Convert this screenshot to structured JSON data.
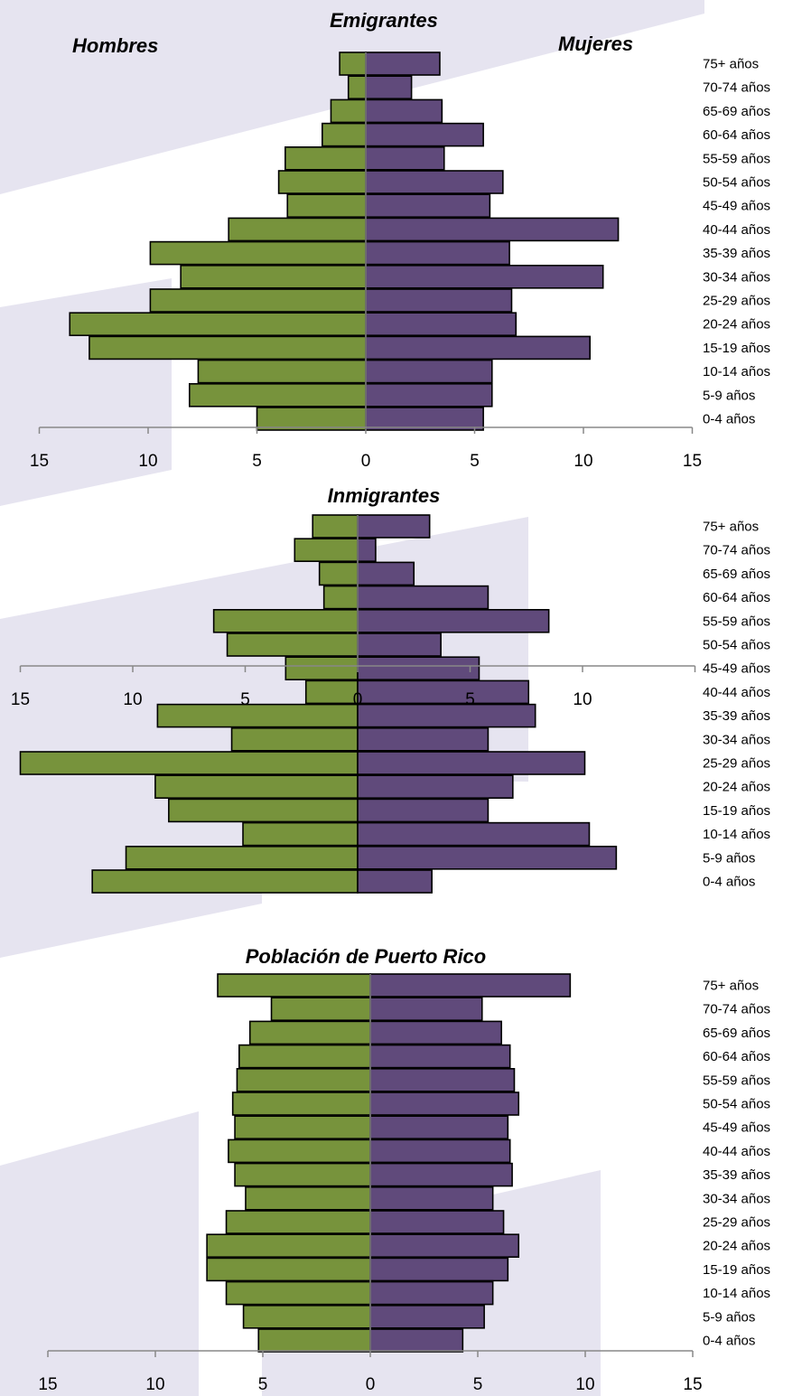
{
  "colors": {
    "male": "#77933c",
    "female": "#604a7b",
    "background_band": "#e6e4f0",
    "axis": "#888888"
  },
  "legend": {
    "male": "Hombres",
    "female": "Mujeres"
  },
  "chart_data": [
    {
      "type": "bar",
      "orientation": "horizontal-pyramid",
      "title": "Emigrantes",
      "categories": [
        "75+ años",
        "70-74 años",
        "65-69 años",
        "60-64 años",
        "55-59 años",
        "50-54 años",
        "45-49 años",
        "40-44 años",
        "35-39 años",
        "30-34 años",
        "25-29 años",
        "20-24 años",
        "15-19 años",
        "10-14 años",
        "5-9 años",
        "0-4 años"
      ],
      "series": [
        {
          "name": "Hombres",
          "values": [
            1.2,
            0.8,
            1.6,
            2.0,
            3.7,
            4.0,
            3.6,
            6.3,
            9.9,
            8.5,
            9.9,
            13.6,
            12.7,
            7.7,
            8.1,
            5.0
          ]
        },
        {
          "name": "Mujeres",
          "values": [
            3.4,
            2.1,
            3.5,
            5.4,
            3.6,
            6.3,
            5.7,
            11.6,
            6.6,
            10.9,
            6.7,
            6.9,
            10.3,
            5.8,
            5.8,
            5.4
          ]
        }
      ],
      "xlim": [
        -15,
        15
      ],
      "ticks": [
        -15,
        -10,
        -5,
        0,
        5,
        10,
        15
      ],
      "tick_labels": [
        "15",
        "10",
        "5",
        "0",
        "5",
        "10",
        "15"
      ]
    },
    {
      "type": "bar",
      "orientation": "horizontal-pyramid",
      "title": "Inmigrantes",
      "categories": [
        "75+ años",
        "70-74 años",
        "65-69 años",
        "60-64 años",
        "55-59 años",
        "50-54 años",
        "45-49 años",
        "40-44 años",
        "35-39 años",
        "30-34 años",
        "25-29 años",
        "20-24 años",
        "15-19 años",
        "10-14 años",
        "5-9 años",
        "0-4 años"
      ],
      "series": [
        {
          "name": "Hombres",
          "values": [
            2.0,
            2.8,
            1.7,
            1.5,
            6.4,
            5.8,
            3.2,
            2.3,
            8.9,
            5.6,
            15.0,
            9.0,
            8.4,
            5.1,
            10.3,
            11.8
          ]
        },
        {
          "name": "Mujeres",
          "values": [
            3.2,
            0.8,
            2.5,
            5.8,
            8.5,
            3.7,
            5.4,
            7.6,
            7.9,
            5.8,
            10.1,
            6.9,
            5.8,
            10.3,
            11.5,
            3.3
          ]
        }
      ],
      "xlim": [
        -15,
        15
      ],
      "ticks": [
        -15,
        -10,
        -5,
        0,
        5,
        10,
        15
      ],
      "tick_labels": [
        "15",
        "10",
        "5",
        "0",
        "5",
        "10",
        ""
      ]
    },
    {
      "type": "bar",
      "orientation": "horizontal-pyramid",
      "title": "Población de Puerto Rico",
      "categories": [
        "75+ años",
        "70-74 años",
        "65-69 años",
        "60-64 años",
        "55-59 años",
        "50-54 años",
        "45-49 años",
        "40-44 años",
        "35-39 años",
        "30-34 años",
        "25-29 años",
        "20-24 años",
        "15-19 años",
        "10-14 años",
        "5-9 años",
        "0-4 años"
      ],
      "series": [
        {
          "name": "Hombres",
          "values": [
            7.1,
            4.6,
            5.6,
            6.1,
            6.2,
            6.4,
            6.3,
            6.6,
            6.3,
            5.8,
            6.7,
            7.6,
            7.6,
            6.7,
            5.9,
            5.2
          ]
        },
        {
          "name": "Mujeres",
          "values": [
            9.3,
            5.2,
            6.1,
            6.5,
            6.7,
            6.9,
            6.4,
            6.5,
            6.6,
            5.7,
            6.2,
            6.9,
            6.4,
            5.7,
            5.3,
            4.3
          ]
        }
      ],
      "xlim": [
        -15,
        15
      ],
      "ticks": [
        -15,
        -10,
        -5,
        0,
        5,
        10,
        15
      ],
      "tick_labels": [
        "15",
        "10",
        "5",
        "0",
        "5",
        "10",
        "15"
      ]
    }
  ]
}
